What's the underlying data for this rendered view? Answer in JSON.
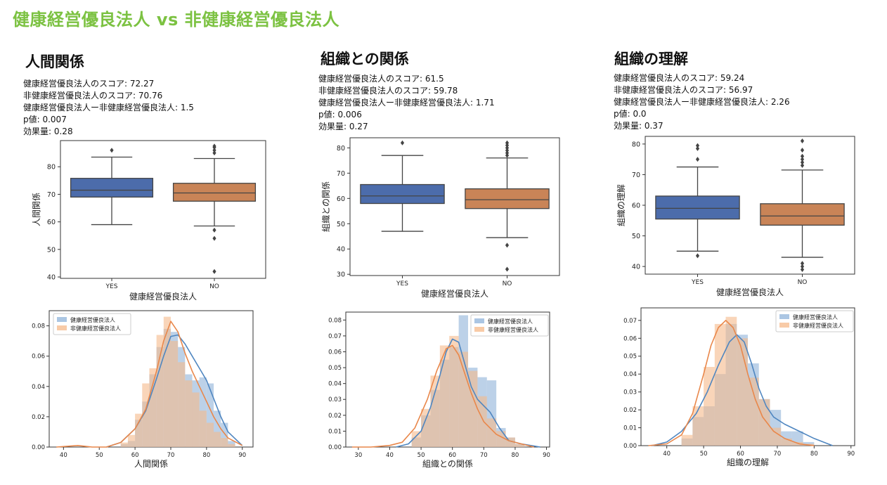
{
  "slide_title": "健康経営優良法人 vs 非健康経営優良法人",
  "panels": [
    {
      "title": "人間関係",
      "stats": [
        "健康経営優良法人のスコア: 72.27",
        "非健康経営優良法人のスコア: 70.76",
        "健康経営優良法人ー非健康経営優良法人: 1.5",
        "p値: 0.007",
        "効果量: 0.28"
      ]
    },
    {
      "title": "組織との関係",
      "stats": [
        "健康経営優良法人のスコア: 61.5",
        "非健康経営優良法人のスコア: 59.78",
        "健康経営優良法人ー非健康経営優良法人: 1.71",
        "p値: 0.006",
        "効果量: 0.27"
      ]
    },
    {
      "title": "組織の理解",
      "stats": [
        "健康経営優良法人のスコア: 59.24",
        "非健康経営優良法人のスコア: 56.97",
        "健康経営優良法人ー非健康経営優良法人: 2.26",
        "p値: 0.0",
        "効果量: 0.37"
      ]
    }
  ],
  "colors": {
    "yes_box": "#4c6cab",
    "no_box": "#c98457",
    "hist_blue": "#8fb3d9",
    "hist_orange": "#f5b98a",
    "kde_blue": "#4f86c0",
    "kde_orange": "#e9874a"
  },
  "chart_data": [
    {
      "type": "box",
      "panel": 0,
      "xlabel": "健康経営優良法人",
      "ylabel": "人間関係",
      "categories": [
        "YES",
        "NO"
      ],
      "ylim": [
        39.5,
        89.5
      ],
      "yticks": [
        40,
        50,
        60,
        70,
        80
      ],
      "boxes": [
        {
          "q1": 69,
          "median": 71.5,
          "q3": 75.8,
          "whisker_low": 59,
          "whisker_high": 83.5,
          "outliers": [
            86
          ]
        },
        {
          "q1": 67.5,
          "median": 70.5,
          "q3": 74,
          "whisker_low": 58.5,
          "whisker_high": 83,
          "outliers": [
            54,
            57,
            85,
            86,
            87,
            87.5,
            42
          ]
        }
      ]
    },
    {
      "type": "box",
      "panel": 1,
      "xlabel": "健康経営優良法人",
      "ylabel": "組織との関係",
      "categories": [
        "YES",
        "NO"
      ],
      "ylim": [
        29.5,
        84
      ],
      "yticks": [
        30,
        40,
        50,
        60,
        70,
        80
      ],
      "boxes": [
        {
          "q1": 58,
          "median": 61,
          "q3": 65.5,
          "whisker_low": 47,
          "whisker_high": 77,
          "outliers": [
            82
          ]
        },
        {
          "q1": 56,
          "median": 59.5,
          "q3": 63.8,
          "whisker_low": 44.5,
          "whisker_high": 76,
          "outliers": [
            41.5,
            32,
            77,
            78,
            79,
            80,
            81,
            82
          ]
        }
      ]
    },
    {
      "type": "box",
      "panel": 2,
      "xlabel": "健康経営優良法人",
      "ylabel": "組織の理解",
      "categories": [
        "YES",
        "NO"
      ],
      "ylim": [
        37.5,
        82.5
      ],
      "yticks": [
        40,
        50,
        60,
        70,
        80
      ],
      "boxes": [
        {
          "q1": 55.5,
          "median": 59,
          "q3": 63,
          "whisker_low": 45,
          "whisker_high": 72.5,
          "outliers": [
            43.5,
            75,
            78.5,
            79.5
          ]
        },
        {
          "q1": 53.5,
          "median": 56.5,
          "q3": 60.5,
          "whisker_low": 43,
          "whisker_high": 71.5,
          "outliers": [
            39,
            40,
            41,
            73,
            74,
            75,
            76,
            78,
            81
          ]
        }
      ]
    },
    {
      "type": "histogram",
      "panel": 0,
      "xlabel": "人間関係",
      "legend": [
        "健康経営優良法人",
        "非健康経営優良法人"
      ],
      "xlim": [
        36,
        93
      ],
      "ylim": [
        0,
        0.09
      ],
      "xticks": [
        40,
        50,
        60,
        70,
        80,
        90
      ],
      "yticks": [
        0.0,
        0.02,
        0.04,
        0.06,
        0.08
      ],
      "series": [
        {
          "name": "健康経営優良法人",
          "bin_start": 56,
          "bin_width": 2,
          "values": [
            0.002,
            0.004,
            0.018,
            0.03,
            0.048,
            0.066,
            0.078,
            0.076,
            0.066,
            0.048,
            0.044,
            0.046,
            0.042,
            0.024,
            0.016,
            0.004
          ]
        },
        {
          "name": "非健康経営優良法人",
          "bin_start": 56,
          "bin_width": 2,
          "values": [
            0.003,
            0.008,
            0.022,
            0.042,
            0.052,
            0.074,
            0.086,
            0.07,
            0.056,
            0.044,
            0.036,
            0.024,
            0.016,
            0.01,
            0.006,
            0.002
          ]
        }
      ],
      "kde": [
        {
          "name": "健康経営優良法人",
          "x": [
            52,
            56,
            60,
            63,
            66,
            68,
            70,
            72,
            74,
            76,
            78,
            80,
            82,
            84,
            86,
            90
          ],
          "y": [
            0.0,
            0.003,
            0.012,
            0.024,
            0.045,
            0.06,
            0.073,
            0.074,
            0.068,
            0.06,
            0.052,
            0.044,
            0.032,
            0.02,
            0.01,
            0.001
          ]
        },
        {
          "name": "非健康経営優良法人",
          "x": [
            38,
            44,
            48,
            52,
            56,
            60,
            63,
            66,
            68,
            70,
            72,
            74,
            76,
            78,
            80,
            82,
            84,
            86,
            90
          ],
          "y": [
            0.0,
            0.001,
            0.0,
            0.0,
            0.003,
            0.012,
            0.025,
            0.05,
            0.07,
            0.083,
            0.076,
            0.062,
            0.05,
            0.04,
            0.03,
            0.02,
            0.012,
            0.006,
            0.001
          ]
        }
      ]
    },
    {
      "type": "histogram",
      "panel": 1,
      "xlabel": "組織との関係",
      "legend": [
        "健康経営優良法人",
        "非健康経営優良法人"
      ],
      "xlim": [
        26,
        91
      ],
      "ylim": [
        0,
        0.085
      ],
      "xticks": [
        30,
        40,
        50,
        60,
        70,
        80,
        90
      ],
      "yticks": [
        0.0,
        0.01,
        0.02,
        0.03,
        0.04,
        0.05,
        0.06,
        0.07,
        0.08
      ],
      "series": [
        {
          "name": "健康経営優良法人",
          "bin_start": 47,
          "bin_width": 3,
          "values": [
            0.006,
            0.02,
            0.036,
            0.055,
            0.063,
            0.083,
            0.05,
            0.044,
            0.042,
            0.012,
            0.006,
            0.002
          ]
        },
        {
          "name": "非健康経営優良法人",
          "bin_start": 47,
          "bin_width": 3,
          "values": [
            0.01,
            0.024,
            0.045,
            0.064,
            0.07,
            0.06,
            0.048,
            0.032,
            0.018,
            0.01,
            0.006,
            0.002
          ]
        }
      ],
      "kde": [
        {
          "name": "健康経営優良法人",
          "x": [
            42,
            46,
            50,
            53,
            56,
            58,
            60,
            62,
            64,
            66,
            68,
            70,
            72,
            75,
            78,
            82,
            88
          ],
          "y": [
            0.0,
            0.002,
            0.01,
            0.025,
            0.045,
            0.06,
            0.068,
            0.066,
            0.052,
            0.038,
            0.03,
            0.026,
            0.022,
            0.012,
            0.004,
            0.002,
            0.0
          ]
        },
        {
          "name": "非健康経営優良法人",
          "x": [
            28,
            34,
            40,
            44,
            48,
            52,
            55,
            58,
            60,
            62,
            64,
            66,
            68,
            70,
            74,
            78,
            82,
            86
          ],
          "y": [
            0.0,
            0.0,
            0.001,
            0.003,
            0.012,
            0.03,
            0.048,
            0.062,
            0.064,
            0.058,
            0.046,
            0.034,
            0.024,
            0.016,
            0.008,
            0.004,
            0.002,
            0.0
          ]
        }
      ]
    },
    {
      "type": "histogram",
      "panel": 2,
      "xlabel": "組織の理解",
      "legend": [
        "健康経営優良法人",
        "非健康経営優良法人"
      ],
      "xlim": [
        33,
        91
      ],
      "ylim": [
        0,
        0.077
      ],
      "xticks": [
        40,
        50,
        60,
        70,
        80,
        90
      ],
      "yticks": [
        0.0,
        0.01,
        0.02,
        0.03,
        0.04,
        0.05,
        0.06,
        0.07
      ],
      "series": [
        {
          "name": "健康経営優良法人",
          "bin_start": 44,
          "bin_width": 3,
          "values": [
            0.004,
            0.016,
            0.022,
            0.04,
            0.068,
            0.062,
            0.046,
            0.026,
            0.02,
            0.008,
            0.008,
            0.002
          ]
        },
        {
          "name": "非健康経営優良法人",
          "bin_start": 44,
          "bin_width": 3,
          "values": [
            0.006,
            0.022,
            0.044,
            0.068,
            0.072,
            0.06,
            0.038,
            0.026,
            0.01,
            0.004,
            0.002,
            0.001
          ]
        }
      ],
      "kde": [
        {
          "name": "健康経営優良法人",
          "x": [
            36,
            40,
            44,
            48,
            51,
            54,
            57,
            59,
            61,
            63,
            65,
            67,
            69,
            72,
            76,
            80,
            85
          ],
          "y": [
            0.0,
            0.002,
            0.008,
            0.018,
            0.03,
            0.045,
            0.058,
            0.062,
            0.058,
            0.046,
            0.032,
            0.022,
            0.016,
            0.012,
            0.008,
            0.004,
            0.0
          ]
        },
        {
          "name": "非健康経営優良法人",
          "x": [
            35,
            40,
            44,
            47,
            50,
            52,
            54,
            56,
            58,
            60,
            62,
            64,
            66,
            69,
            72,
            76,
            80
          ],
          "y": [
            0.0,
            0.001,
            0.006,
            0.018,
            0.04,
            0.056,
            0.066,
            0.07,
            0.066,
            0.056,
            0.04,
            0.026,
            0.016,
            0.008,
            0.004,
            0.001,
            0.0
          ]
        }
      ]
    }
  ]
}
